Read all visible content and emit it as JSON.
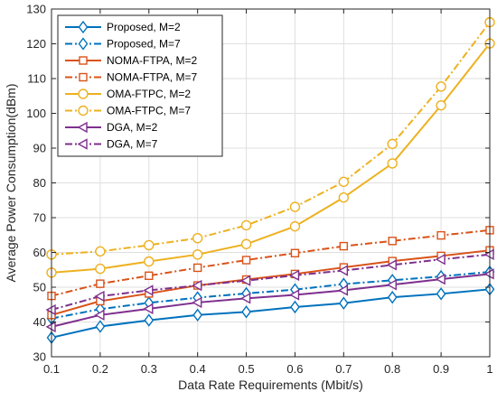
{
  "chart_data": {
    "type": "line",
    "title": "",
    "xlabel": "Data Rate Requirements (Mbit/s)",
    "ylabel": "Average Power Consumption(dBm)",
    "xlim": [
      0.1,
      1
    ],
    "ylim": [
      30,
      130
    ],
    "x": [
      0.1,
      0.2,
      0.3,
      0.4,
      0.5,
      0.6,
      0.7,
      0.8,
      0.9,
      1
    ],
    "x_tick_labels": [
      "0.1",
      "0.2",
      "0.3",
      "0.4",
      "0.5",
      "0.6",
      "0.7",
      "0.8",
      "0.9",
      "1"
    ],
    "y_tick_labels": [
      "30",
      "40",
      "50",
      "60",
      "70",
      "80",
      "90",
      "100",
      "110",
      "120",
      "130"
    ],
    "grid": true,
    "legend_position": "top-left",
    "series": [
      {
        "name": "Proposed, M=2",
        "color": "#0072BD",
        "dash": "solid",
        "marker": "diamond",
        "values": [
          35.5,
          38.7,
          40.5,
          42.0,
          42.9,
          44.3,
          45.4,
          47.1,
          48.1,
          49.4
        ]
      },
      {
        "name": "Proposed, M=7",
        "color": "#0072BD",
        "dash": "dashdot",
        "marker": "diamond",
        "values": [
          41.0,
          43.7,
          45.5,
          47.0,
          48.2,
          49.3,
          50.9,
          52.0,
          53.1,
          54.4
        ]
      },
      {
        "name": "NOMA-FTPA, M=2",
        "color": "#D95319",
        "dash": "solid",
        "marker": "square",
        "values": [
          42.0,
          46.0,
          48.2,
          50.5,
          52.2,
          53.8,
          55.7,
          57.5,
          59.0,
          60.6
        ]
      },
      {
        "name": "NOMA-FTPA, M=7",
        "color": "#D95319",
        "dash": "dashdot",
        "marker": "square",
        "values": [
          47.5,
          51.0,
          53.3,
          55.6,
          57.8,
          59.8,
          61.8,
          63.3,
          64.9,
          66.4
        ]
      },
      {
        "name": "OMA-FTPC, M=2",
        "color": "#EDB120",
        "dash": "solid",
        "marker": "circle",
        "values": [
          54.2,
          55.3,
          57.4,
          59.4,
          62.4,
          67.5,
          75.8,
          85.6,
          102.3,
          120.1
        ]
      },
      {
        "name": "OMA-FTPC, M=7",
        "color": "#EDB120",
        "dash": "dashdot",
        "marker": "circle",
        "values": [
          59.4,
          60.3,
          62.1,
          64.1,
          67.8,
          73.1,
          80.3,
          91.2,
          107.7,
          126.2
        ]
      },
      {
        "name": "DGA, M=2",
        "color": "#7E2F8E",
        "dash": "solid",
        "marker": "triangle-left",
        "values": [
          38.6,
          42.0,
          43.8,
          45.6,
          46.8,
          47.8,
          49.1,
          50.7,
          52.3,
          53.8
        ]
      },
      {
        "name": "DGA, M=7",
        "color": "#7E2F8E",
        "dash": "dashdot",
        "marker": "triangle-left",
        "values": [
          43.5,
          47.4,
          49.1,
          50.5,
          51.9,
          53.4,
          54.8,
          56.4,
          58.0,
          59.4
        ]
      }
    ]
  }
}
